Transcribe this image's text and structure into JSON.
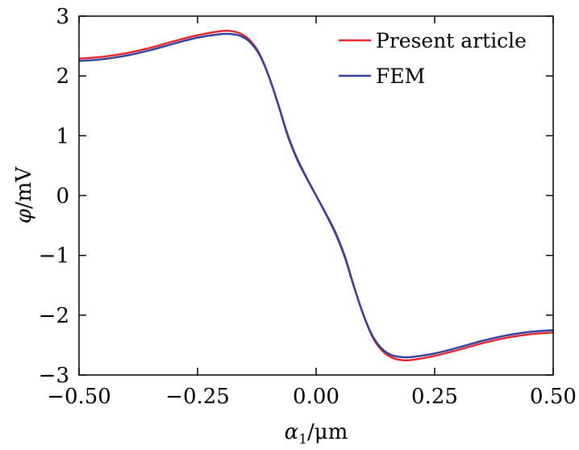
{
  "chart_data": {
    "type": "line",
    "xlabel": {
      "symbol": "α",
      "sub": "1",
      "unit": "/μm"
    },
    "ylabel": {
      "symbol": "φ",
      "unit": "/mV"
    },
    "xlim": [
      -0.5,
      0.5
    ],
    "ylim": [
      -3,
      3
    ],
    "xticks": [
      -0.5,
      -0.25,
      0.0,
      0.25,
      0.5
    ],
    "xtick_labels": [
      "−0.50",
      "−0.25",
      "0.00",
      "0.25",
      "0.50"
    ],
    "yticks": [
      -3,
      -2,
      -1,
      0,
      1,
      2,
      3
    ],
    "ytick_labels": [
      "−3",
      "−2",
      "−1",
      "0",
      "1",
      "2",
      "3"
    ],
    "legend_position": "top-right",
    "grid": false,
    "series": [
      {
        "name": "Present article",
        "color": "#e3242b",
        "x": [
          -0.5,
          -0.45,
          -0.4,
          -0.35,
          -0.3,
          -0.25,
          -0.2,
          -0.18,
          -0.16,
          -0.14,
          -0.12,
          -0.1,
          -0.08,
          -0.06,
          -0.04,
          -0.02,
          0.0,
          0.02,
          0.04,
          0.06,
          0.08,
          0.1,
          0.12,
          0.14,
          0.16,
          0.18,
          0.2,
          0.25,
          0.3,
          0.35,
          0.4,
          0.45,
          0.5
        ],
        "y": [
          2.29,
          2.32,
          2.38,
          2.47,
          2.58,
          2.68,
          2.75,
          2.75,
          2.71,
          2.6,
          2.38,
          2.0,
          1.52,
          1.0,
          0.6,
          0.29,
          0.0,
          -0.29,
          -0.6,
          -1.0,
          -1.52,
          -2.0,
          -2.38,
          -2.6,
          -2.71,
          -2.75,
          -2.75,
          -2.68,
          -2.58,
          -2.47,
          -2.38,
          -2.32,
          -2.29
        ]
      },
      {
        "name": "FEM",
        "color": "#2e3f9e",
        "x": [
          -0.5,
          -0.45,
          -0.4,
          -0.35,
          -0.3,
          -0.25,
          -0.2,
          -0.18,
          -0.16,
          -0.14,
          -0.12,
          -0.1,
          -0.08,
          -0.06,
          -0.04,
          -0.02,
          0.0,
          0.02,
          0.04,
          0.06,
          0.08,
          0.1,
          0.12,
          0.14,
          0.16,
          0.18,
          0.2,
          0.25,
          0.3,
          0.35,
          0.4,
          0.45,
          0.5
        ],
        "y": [
          2.25,
          2.28,
          2.34,
          2.43,
          2.54,
          2.64,
          2.7,
          2.7,
          2.67,
          2.57,
          2.36,
          2.0,
          1.53,
          1.02,
          0.62,
          0.3,
          0.0,
          -0.3,
          -0.62,
          -1.02,
          -1.53,
          -2.0,
          -2.36,
          -2.57,
          -2.67,
          -2.7,
          -2.7,
          -2.64,
          -2.54,
          -2.43,
          -2.34,
          -2.28,
          -2.25
        ]
      }
    ]
  }
}
